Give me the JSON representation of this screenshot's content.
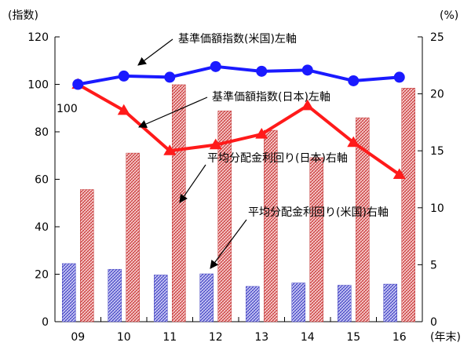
{
  "chart_data": {
    "type": "bar+line",
    "categories": [
      "09",
      "10",
      "11",
      "12",
      "13",
      "14",
      "15",
      "16"
    ],
    "x_unit": "(年末)",
    "y_left": {
      "unit": "(指数)",
      "ylim": [
        0,
        120
      ],
      "ticks": [
        0,
        20,
        40,
        60,
        80,
        100,
        120
      ]
    },
    "y_right": {
      "unit": "(%)",
      "ylim": [
        0,
        25
      ],
      "ticks": [
        0,
        5,
        10,
        15,
        20,
        25
      ]
    },
    "series": [
      {
        "name": "基準価額指数(米国)左軸",
        "type": "line",
        "axis": "left",
        "color": "#1a1aff",
        "values": [
          100,
          103.5,
          103,
          107.5,
          105.5,
          106,
          101.5,
          103
        ]
      },
      {
        "name": "基準価額指数(日本)左軸",
        "type": "line",
        "axis": "left",
        "color": "#ff1a1a",
        "values": [
          100,
          89,
          72,
          74.5,
          79,
          91,
          75.5,
          62
        ]
      },
      {
        "name": "平均分配金利回り(日本)右軸",
        "type": "bar",
        "axis": "right",
        "color": "#e05050",
        "values": [
          11.6,
          14.8,
          20.8,
          18.5,
          16.8,
          14.4,
          17.9,
          20.5
        ]
      },
      {
        "name": "平均分配金利回り(米国)右軸",
        "type": "bar",
        "axis": "right",
        "color": "#3b3bd6",
        "values": [
          5.1,
          4.6,
          4.1,
          4.2,
          3.1,
          3.4,
          3.2,
          3.3
        ]
      }
    ],
    "data_label": {
      "text": "100"
    },
    "grid": false
  }
}
